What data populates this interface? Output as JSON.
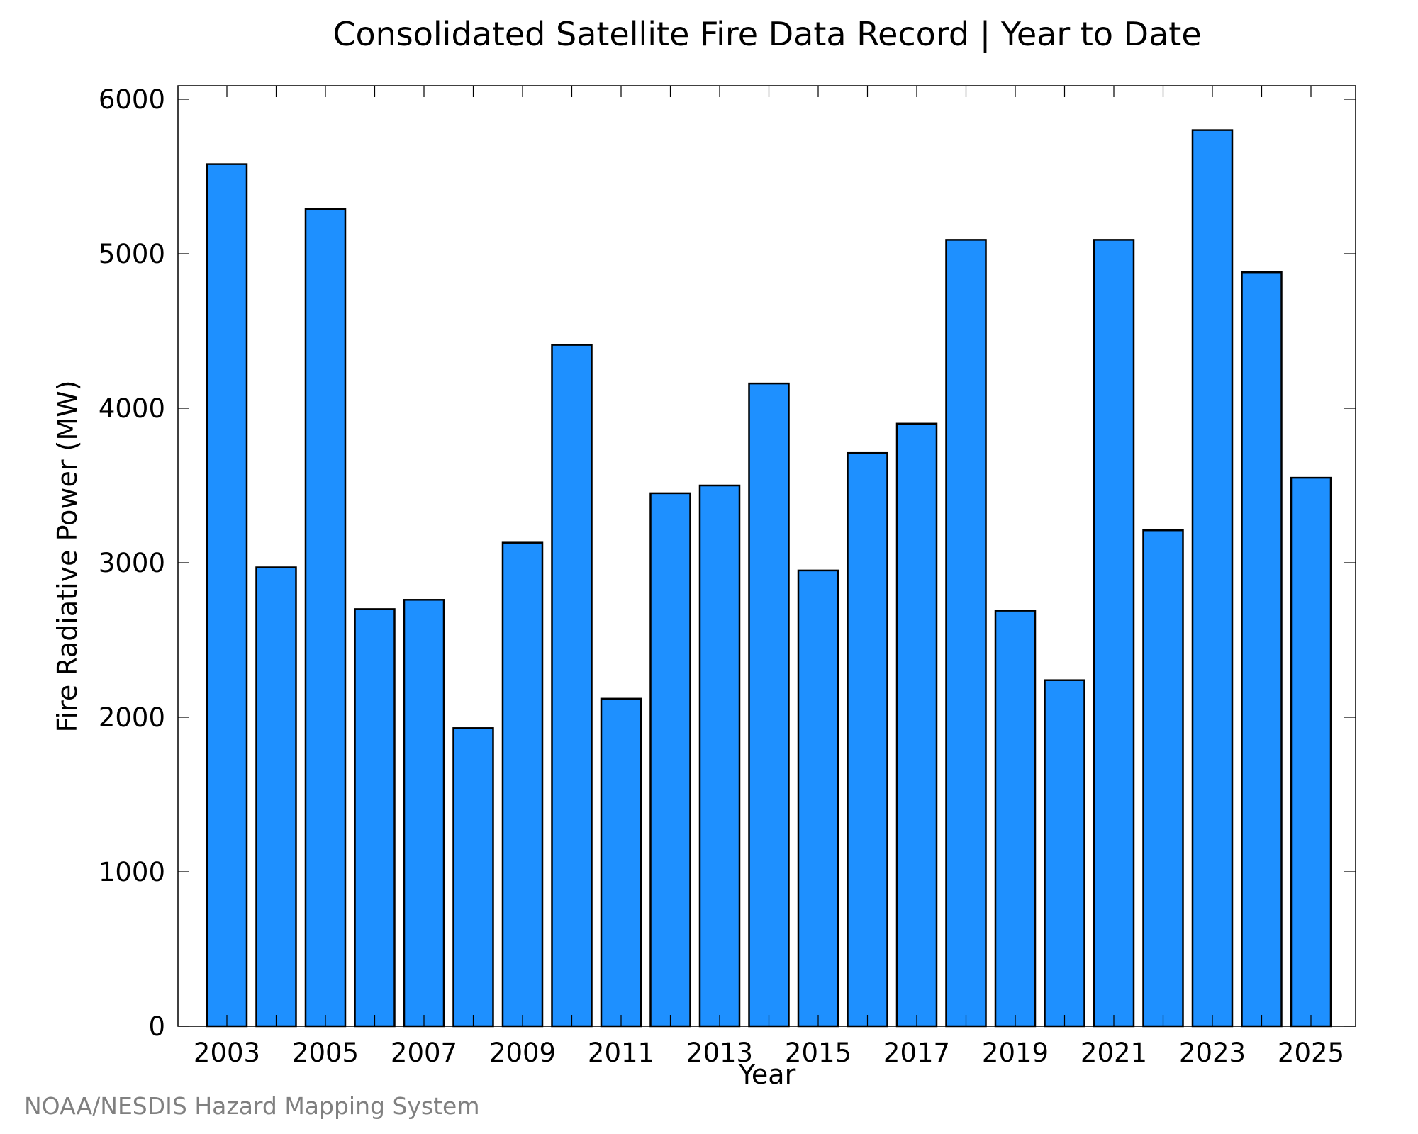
{
  "chart_data": {
    "type": "bar",
    "title": "Consolidated Satellite Fire Data Record | Year to Date",
    "xlabel": "Year",
    "ylabel": "Fire Radiative Power (MW)",
    "ylim": [
      0,
      6000
    ],
    "yticks": [
      0,
      1000,
      2000,
      3000,
      4000,
      5000,
      6000
    ],
    "xtick_labels": [
      "2003",
      "2005",
      "2007",
      "2009",
      "2011",
      "2013",
      "2015",
      "2017",
      "2019",
      "2021",
      "2023",
      "2025"
    ],
    "categories": [
      "2003",
      "2004",
      "2005",
      "2006",
      "2007",
      "2008",
      "2009",
      "2010",
      "2011",
      "2012",
      "2013",
      "2014",
      "2015",
      "2016",
      "2017",
      "2018",
      "2019",
      "2020",
      "2021",
      "2022",
      "2023",
      "2024",
      "2025"
    ],
    "values": [
      5580,
      2970,
      5290,
      2700,
      2760,
      1930,
      3130,
      4410,
      2120,
      3450,
      3500,
      4160,
      2950,
      3710,
      3900,
      5090,
      2690,
      2240,
      5090,
      3210,
      5800,
      4880,
      3550
    ],
    "bar_color": "#1E90FF",
    "grid": false,
    "legend": "none"
  },
  "footer": {
    "source": "NOAA/NESDIS Hazard Mapping System"
  }
}
